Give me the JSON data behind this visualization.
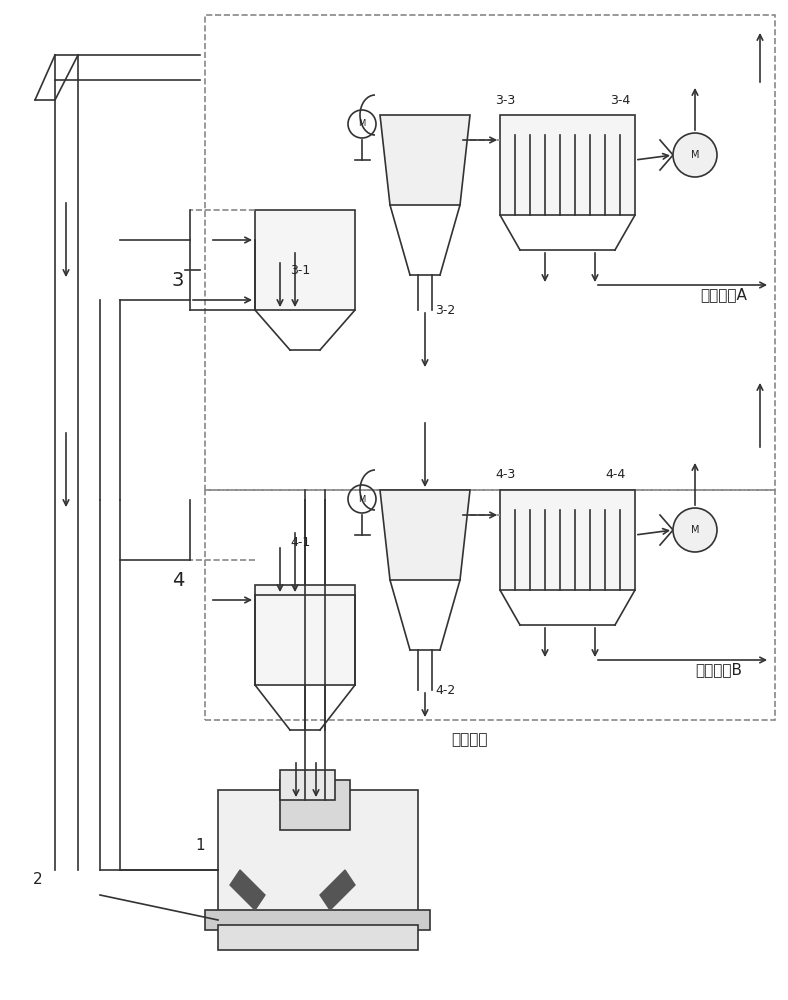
{
  "bg_color": "#ffffff",
  "line_color": "#333333",
  "dash_color": "#555555",
  "text_color": "#222222",
  "figsize": [
    7.88,
    10.0
  ],
  "dpi": 100,
  "labels": {
    "box3": "3",
    "box4": "4",
    "label1": "1",
    "label2": "2",
    "label31": "3-1",
    "label32": "3-2",
    "label33": "3-3",
    "label34": "3-4",
    "label41": "4-1",
    "label42": "4-2",
    "label43": "4-3",
    "label44": "4-4",
    "productA": "水泥产品A",
    "productB": "水泥产品B",
    "rawmat": "水泥原料"
  }
}
